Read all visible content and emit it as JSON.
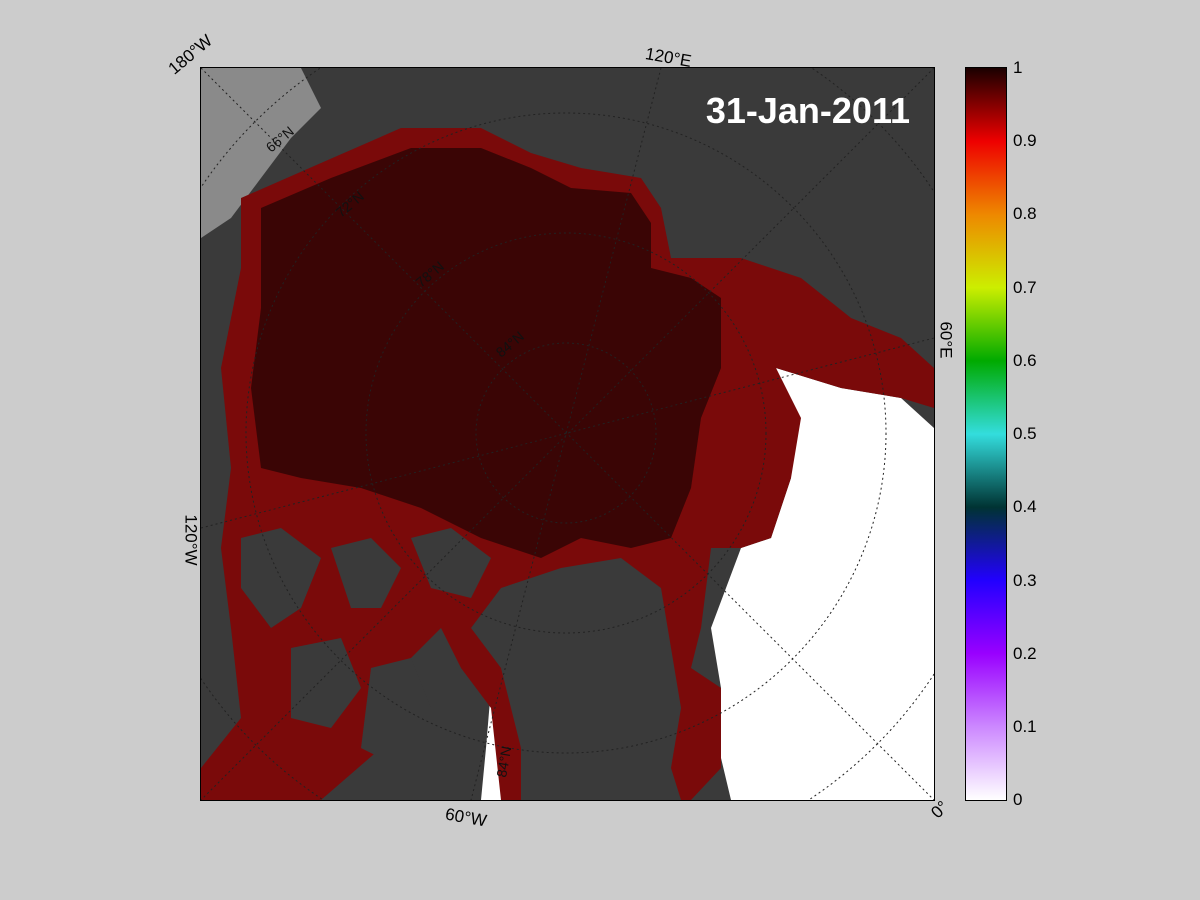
{
  "map": {
    "date": "31-Jan-2011",
    "longitude_labels": [
      "180°W",
      "120°E",
      "60°E",
      "0°",
      "60°W",
      "120°W"
    ],
    "latitude_labels": [
      "66°N",
      "72°N",
      "78°N",
      "84°N",
      "84°N"
    ],
    "colors": {
      "land": "#3a3a3a",
      "land_light": "#8a8a8a",
      "ice_full": "#3a0505",
      "ice_edge": "#7a0a0a",
      "open_water": "#ffffff"
    }
  },
  "colorbar": {
    "ticks": [
      "1",
      "0.9",
      "0.8",
      "0.7",
      "0.6",
      "0.5",
      "0.4",
      "0.3",
      "0.2",
      "0.1",
      "0"
    ],
    "min": 0,
    "max": 1,
    "palette": [
      "#ffffff",
      "#cc88ff",
      "#9900ff",
      "#2200ff",
      "#003333",
      "#33dddd",
      "#00aa00",
      "#ccee00",
      "#ee8800",
      "#ee0000",
      "#1a0000"
    ]
  }
}
